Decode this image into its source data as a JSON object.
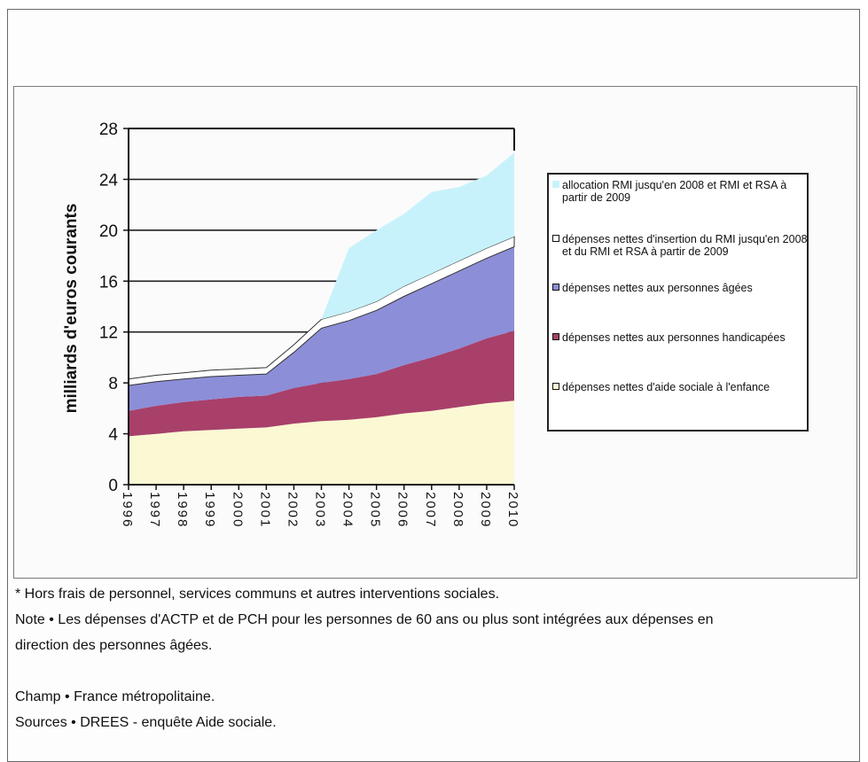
{
  "chart_data": {
    "type": "area",
    "stacked": true,
    "x": [
      "1996",
      "1997",
      "1998",
      "1999",
      "2000",
      "2001",
      "2002",
      "2003",
      "2004",
      "2005",
      "2006",
      "2007",
      "2008",
      "2009",
      "2010"
    ],
    "ylabel": "milliards d'euros courants",
    "ylim": [
      0,
      28
    ],
    "yticks": [
      "0",
      "4",
      "8",
      "12",
      "16",
      "20",
      "24",
      "28"
    ],
    "grid": true,
    "legend_position": "right",
    "series": [
      {
        "name": "dépenses nettes d'aide sociale à l'enfance",
        "color": "#fbf8d4",
        "values": [
          3.8,
          4.0,
          4.2,
          4.3,
          4.4,
          4.5,
          4.8,
          5.0,
          5.1,
          5.3,
          5.6,
          5.8,
          6.1,
          6.4,
          6.6
        ]
      },
      {
        "name": "dépenses nettes aux personnes handicapées",
        "color": "#a8406a",
        "values": [
          2.0,
          2.2,
          2.3,
          2.4,
          2.5,
          2.5,
          2.8,
          3.0,
          3.2,
          3.4,
          3.8,
          4.2,
          4.6,
          5.1,
          5.5
        ]
      },
      {
        "name": "dépenses nettes aux personnes âgées",
        "color": "#8c8ed8",
        "values": [
          2.0,
          1.9,
          1.8,
          1.8,
          1.7,
          1.7,
          2.8,
          4.3,
          4.6,
          5.0,
          5.4,
          5.8,
          6.1,
          6.3,
          6.6
        ]
      },
      {
        "name": "dépenses nettes d'insertion du RMI jusqu'en 2008 et du RMI et RSA à partir de 2009",
        "color": "#ffffff",
        "values": [
          0.5,
          0.5,
          0.5,
          0.5,
          0.5,
          0.5,
          0.6,
          0.7,
          0.7,
          0.7,
          0.8,
          0.8,
          0.8,
          0.8,
          0.8
        ]
      },
      {
        "name": "allocation RMI jusqu'en 2008 et RMI et RSA à partir de 2009",
        "color": "#c8f2fb",
        "values": [
          0,
          0,
          0,
          0,
          0,
          0,
          0,
          0,
          5.0,
          5.6,
          5.7,
          6.4,
          5.8,
          5.7,
          6.6
        ]
      }
    ]
  },
  "notes": {
    "line1": "* Hors frais de personnel, services communs et autres interventions sociales.",
    "line2": "Note • Les dépenses d'ACTP et de PCH pour les personnes de 60 ans ou plus sont intégrées aux dépenses en",
    "line3": "direction des personnes âgées.",
    "line4": "Champ • France métropolitaine.",
    "line5": "Sources • DREES - enquête Aide sociale."
  }
}
